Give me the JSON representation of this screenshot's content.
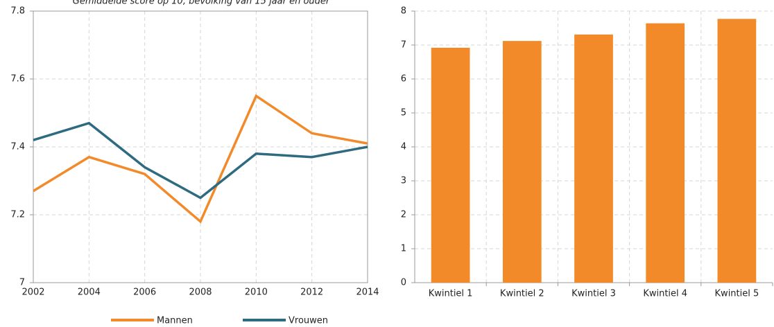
{
  "chart_data": [
    {
      "type": "line",
      "subtitle": "Gemiddelde score op 10, bevolking van 15 jaar en ouder",
      "x": [
        2002,
        2004,
        2006,
        2008,
        2010,
        2012,
        2014
      ],
      "series": [
        {
          "name": "Mannen",
          "color": "#f28a2a",
          "values": [
            7.27,
            7.37,
            7.32,
            7.18,
            7.55,
            7.44,
            7.41
          ]
        },
        {
          "name": "Vrouwen",
          "color": "#2e6a80",
          "values": [
            7.42,
            7.47,
            7.34,
            7.25,
            7.38,
            7.37,
            7.4
          ]
        }
      ],
      "xlim": [
        2002,
        2014
      ],
      "xticks": [
        2002,
        2004,
        2006,
        2008,
        2010,
        2012,
        2014
      ],
      "ylim": [
        7,
        7.8
      ],
      "yticks": [
        7,
        7.2,
        7.4,
        7.6,
        7.8
      ],
      "grid": true,
      "legend": "bottom"
    },
    {
      "type": "bar",
      "categories": [
        "Kwintiel 1",
        "Kwintiel 2",
        "Kwintiel 3",
        "Kwintiel 4",
        "Kwintiel 5"
      ],
      "values": [
        6.92,
        7.12,
        7.31,
        7.64,
        7.77
      ],
      "color": "#f28a2a",
      "ylim": [
        0,
        8
      ],
      "yticks": [
        0,
        1,
        2,
        3,
        4,
        5,
        6,
        7,
        8
      ],
      "grid": true
    }
  ]
}
